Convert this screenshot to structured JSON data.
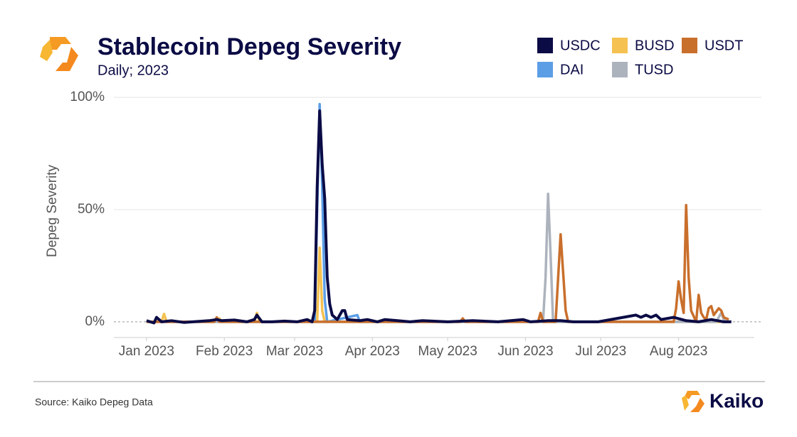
{
  "chart_data": {
    "type": "line",
    "title": "Stablecoin Depeg Severity",
    "subtitle": "Daily; 2023",
    "y_label": "Depeg Severity",
    "source": "Source: Kaiko Depeg Data",
    "brand": "Kaiko",
    "xlim": [
      -13,
      245
    ],
    "xticks": [
      {
        "value": 0,
        "label": "Jan 2023"
      },
      {
        "value": 31,
        "label": "Feb 2023"
      },
      {
        "value": 59,
        "label": "Mar 2023"
      },
      {
        "value": 90,
        "label": "Apr 2023"
      },
      {
        "value": 120,
        "label": "May 2023"
      },
      {
        "value": 151,
        "label": "Jun 2023"
      },
      {
        "value": 181,
        "label": "Jul 2023"
      },
      {
        "value": 212,
        "label": "Aug 2023"
      }
    ],
    "ylim": [
      -7,
      100
    ],
    "yticks": [
      {
        "value": 0,
        "label": "0%"
      },
      {
        "value": 50,
        "label": "50%"
      },
      {
        "value": 100,
        "label": "100%"
      }
    ],
    "grid": true,
    "series": [
      {
        "name": "DAI",
        "color": "#5b9ee6",
        "x": [
          0,
          67,
          68,
          69,
          70,
          71,
          72,
          84,
          85,
          233
        ],
        "values": [
          0,
          0,
          50,
          97,
          60,
          10,
          0,
          3,
          0,
          0
        ]
      },
      {
        "name": "BUSD",
        "color": "#f5c150",
        "x": [
          0,
          6,
          7,
          8,
          28,
          29,
          30,
          43,
          44,
          45,
          68,
          69,
          70,
          71,
          233
        ],
        "values": [
          0,
          0,
          3.5,
          0,
          0,
          1.5,
          0,
          0,
          4,
          0,
          0,
          33,
          5,
          0,
          0
        ]
      },
      {
        "name": "TUSD",
        "color": "#adb3bd",
        "x": [
          0,
          158,
          159,
          160,
          161,
          162,
          227,
          228,
          229,
          230,
          231
        ],
        "values": [
          0,
          0,
          20,
          57,
          30,
          0,
          0,
          2,
          4,
          1,
          0
        ]
      },
      {
        "name": "USDT",
        "color": "#c96f2c",
        "x": [
          0,
          27,
          28,
          29,
          125,
          126,
          127,
          156,
          157,
          158,
          163,
          165,
          167,
          168,
          210,
          211,
          212,
          213,
          214,
          215,
          216,
          217,
          219,
          220,
          221,
          222,
          223,
          224,
          225,
          226,
          228,
          229,
          230,
          232
        ],
        "values": [
          0,
          0,
          2,
          0,
          0,
          1.5,
          0,
          0,
          4,
          0,
          0,
          39,
          5,
          0,
          0,
          6,
          18,
          10,
          4,
          52,
          20,
          5,
          0,
          12,
          4,
          2,
          1,
          6,
          7,
          3,
          6,
          5,
          2,
          1
        ]
      },
      {
        "name": "USDC",
        "color": "#0b0b45",
        "x": [
          0,
          3,
          4,
          6,
          10,
          15,
          25,
          28,
          30,
          35,
          40,
          43,
          44,
          46,
          50,
          55,
          60,
          64,
          66,
          67,
          68,
          69,
          70,
          71,
          72,
          73,
          74,
          76,
          78,
          79,
          80,
          85,
          88,
          92,
          95,
          100,
          105,
          110,
          120,
          130,
          140,
          150,
          153,
          160,
          165,
          170,
          180,
          195,
          197,
          199,
          201,
          203,
          205,
          210,
          215,
          220,
          225,
          230,
          233
        ],
        "values": [
          0.5,
          -0.5,
          2,
          0,
          0.5,
          -0.3,
          0.5,
          1,
          0.5,
          0.8,
          0,
          1,
          3,
          0,
          0,
          0.3,
          0,
          1,
          0,
          5,
          60,
          94,
          70,
          55,
          20,
          8,
          3,
          1,
          5,
          5,
          1,
          0.5,
          1,
          0,
          1,
          0.5,
          0,
          0.5,
          0,
          0.5,
          0,
          1,
          0,
          0.5,
          0.5,
          0,
          0,
          3,
          2,
          3,
          2,
          3,
          1,
          2,
          0.5,
          0,
          1,
          0,
          0
        ]
      }
    ],
    "legend_order": [
      4,
      1,
      3,
      0,
      2
    ]
  }
}
